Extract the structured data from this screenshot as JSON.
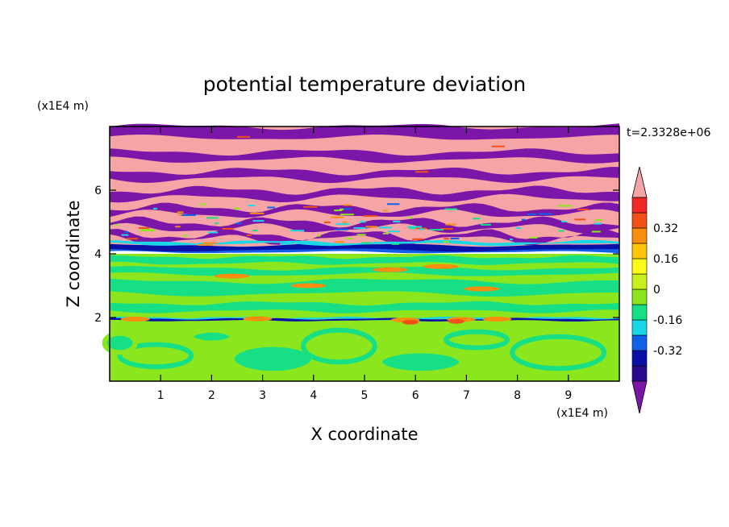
{
  "chart_data": {
    "type": "heatmap",
    "title": "potential temperature deviation",
    "xlabel": "X coordinate",
    "ylabel": "Z coordinate",
    "x_unit": "(x1E4 m)",
    "y_unit": "(x1E4 m)",
    "time_label": "t=2.3328e+06",
    "xlim": [
      0,
      10
    ],
    "ylim": [
      0,
      8
    ],
    "x_ticks": [
      1,
      2,
      3,
      4,
      5,
      6,
      7,
      8,
      9
    ],
    "y_ticks": [
      2,
      4,
      6
    ],
    "grid": false,
    "colorbar": {
      "levels": [
        -0.48,
        -0.4,
        -0.32,
        -0.24,
        -0.16,
        -0.08,
        0,
        0.08,
        0.16,
        0.24,
        0.32,
        0.4,
        0.48
      ],
      "tick_labels": [
        "0.32",
        "0.16",
        "0",
        "-0.16",
        "-0.32"
      ],
      "tick_values": [
        0.32,
        0.16,
        0,
        -0.16,
        -0.32
      ],
      "colors_low_to_high": [
        "#7b16a8",
        "#2a0a8c",
        "#0a0fa6",
        "#1160e8",
        "#1ad7e6",
        "#16df86",
        "#8ce61e",
        "#c9ef1e",
        "#fbfb17",
        "#fdc40b",
        "#f98d0f",
        "#f25018",
        "#f32828",
        "#f5a5a5"
      ],
      "extend": "both",
      "placement": "right"
    },
    "field_description": {
      "layers": [
        {
          "z_range": [
            4.0,
            8.0
          ],
          "pattern": "alternating horizontal bands",
          "colors": [
            "#f5a5a5",
            "#7b16a8"
          ]
        },
        {
          "z_range": [
            4.0,
            4.3
          ],
          "pattern": "strong negative layer",
          "colors": [
            "#0a0fa6",
            "#1160e8"
          ]
        },
        {
          "z_range": [
            2.0,
            4.0
          ],
          "pattern": "mostly near zero",
          "colors": [
            "#16df86",
            "#8ce61e"
          ]
        },
        {
          "z_range": [
            1.9,
            2.0
          ],
          "pattern": "thin mixed layer",
          "colors": [
            "#1ad7e6",
            "#f25018",
            "#0a0fa6"
          ]
        },
        {
          "z_range": [
            0.0,
            2.0
          ],
          "pattern": "mixed convective blobs",
          "colors": [
            "#8ce61e",
            "#16df86"
          ]
        }
      ]
    }
  }
}
